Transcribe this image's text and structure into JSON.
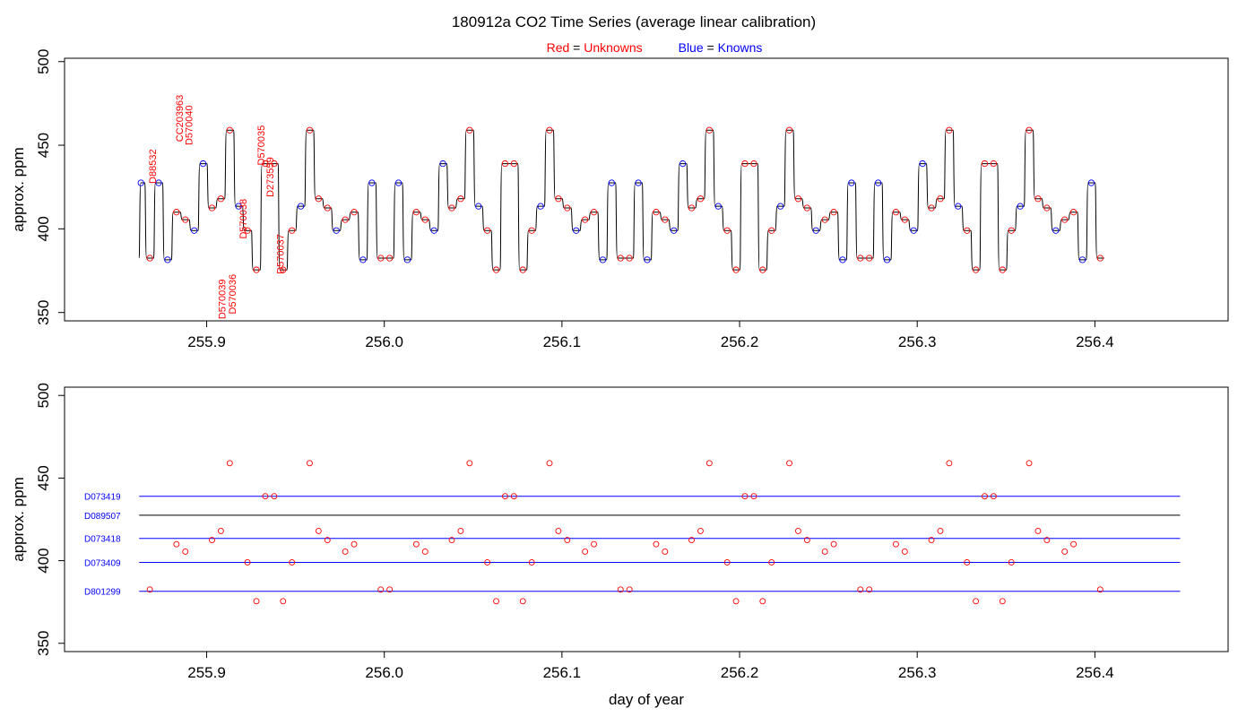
{
  "header": {
    "title": "180912a   CO2 Time Series (average linear calibration)",
    "legend": {
      "unknowns_name": "Red",
      "unknowns_eq": " = ",
      "unknowns_label": "Unknowns",
      "knowns_name": "Blue",
      "knowns_eq": " = ",
      "knowns_label": "Knowns"
    }
  },
  "colors": {
    "unknown": "#ff0000",
    "known": "#0000ff",
    "trace": "#000000",
    "axis": "#000000"
  },
  "chart_data": [
    {
      "type": "line",
      "title": "",
      "xlabel": "",
      "ylabel": "approx. ppm",
      "xlim": [
        255.82,
        256.475
      ],
      "ylim": [
        345,
        502
      ],
      "x_ticks": [
        255.9,
        256.0,
        256.1,
        256.2,
        256.3,
        256.4
      ],
      "x_tick_labels": [
        "255.9",
        "256.0",
        "256.1",
        "256.2",
        "256.3",
        "256.4"
      ],
      "y_ticks": [
        350,
        400,
        450,
        500
      ],
      "y_tick_labels": [
        "350",
        "400",
        "450",
        "500"
      ],
      "trace_start": {
        "x": 255.862,
        "y": 382.5
      },
      "step_interval_days": 0.005,
      "sample_x_start": 255.863,
      "sample_values": [
        427.5,
        382.5,
        427.5,
        381.5,
        410,
        405.5,
        399,
        439,
        412.5,
        418,
        459,
        413.5,
        399,
        375.5,
        439,
        439,
        375.5,
        399,
        413.5,
        459,
        418,
        412.5,
        399,
        405.5,
        410,
        381.5,
        427.5,
        382.5,
        382.5,
        427.5,
        381.5,
        410,
        405.5,
        399,
        439,
        412.5,
        418,
        459,
        413.5,
        399,
        375.5,
        439,
        439,
        375.5,
        399,
        413.5,
        459,
        418,
        412.5,
        399,
        405.5,
        410,
        381.5,
        427.5,
        382.5,
        382.5,
        427.5,
        381.5,
        410,
        405.5,
        399,
        439,
        412.5,
        418,
        459,
        413.5,
        399,
        375.5,
        439,
        439,
        375.5,
        399,
        413.5,
        459,
        418,
        412.5,
        399,
        405.5,
        410,
        381.5,
        427.5,
        382.5,
        382.5,
        427.5,
        381.5,
        410,
        405.5,
        399,
        439,
        412.5,
        418,
        459,
        413.5,
        399,
        375.5,
        439,
        439,
        375.5,
        399,
        413.5,
        459,
        418,
        412.5,
        399,
        405.5,
        410,
        381.5,
        427.5,
        382.5
      ],
      "sample_kinds": [
        "K",
        "U",
        "K",
        "K",
        "U",
        "U",
        "K",
        "K",
        "U",
        "U",
        "U",
        "K",
        "U",
        "U",
        "U",
        "U",
        "U",
        "U",
        "K",
        "U",
        "U",
        "U",
        "K",
        "U",
        "U",
        "K",
        "K",
        "U",
        "U",
        "K",
        "K",
        "U",
        "U",
        "K",
        "K",
        "U",
        "U",
        "U",
        "K",
        "U",
        "U",
        "U",
        "U",
        "U",
        "U",
        "K",
        "U",
        "U",
        "U",
        "K",
        "U",
        "U",
        "K",
        "K",
        "U",
        "U",
        "K",
        "K",
        "U",
        "U",
        "K",
        "K",
        "U",
        "U",
        "U",
        "K",
        "U",
        "U",
        "U",
        "U",
        "U",
        "U",
        "K",
        "U",
        "U",
        "U",
        "K",
        "U",
        "U",
        "K",
        "K",
        "U",
        "U",
        "K",
        "K",
        "U",
        "U",
        "K",
        "K",
        "U",
        "U",
        "U",
        "K",
        "U",
        "U",
        "U",
        "U",
        "U",
        "U",
        "K",
        "U",
        "U",
        "U",
        "K",
        "U",
        "U",
        "K",
        "K",
        "U"
      ],
      "annotations": [
        {
          "text": "D88532",
          "x": 255.8715,
          "y": 427,
          "color": "unknown"
        },
        {
          "text": "CC203963",
          "x": 255.8865,
          "y": 452,
          "color": "unknown"
        },
        {
          "text": "D570040",
          "x": 255.892,
          "y": 450,
          "color": "unknown"
        },
        {
          "text": "D570039",
          "x": 255.9105,
          "y": 346,
          "color": "unknown"
        },
        {
          "text": "D570036",
          "x": 255.9165,
          "y": 349,
          "color": "unknown"
        },
        {
          "text": "D570038",
          "x": 255.9225,
          "y": 394,
          "color": "unknown"
        },
        {
          "text": "D570035",
          "x": 255.9325,
          "y": 438,
          "color": "unknown"
        },
        {
          "text": "D273559",
          "x": 255.9375,
          "y": 419,
          "color": "unknown"
        },
        {
          "text": "D570037",
          "x": 255.9435,
          "y": 373,
          "color": "unknown"
        }
      ]
    },
    {
      "type": "scatter",
      "title": "",
      "xlabel": "day of year",
      "ylabel": "approx. ppm",
      "xlim": [
        255.82,
        256.475
      ],
      "ylim": [
        345,
        505
      ],
      "x_ticks": [
        255.9,
        256.0,
        256.1,
        256.2,
        256.3,
        256.4
      ],
      "x_tick_labels": [
        "255.9",
        "256.0",
        "256.1",
        "256.2",
        "256.3",
        "256.4"
      ],
      "y_ticks": [
        350,
        400,
        450,
        500
      ],
      "y_tick_labels": [
        "350",
        "400",
        "450",
        "500"
      ],
      "reference_lines": [
        {
          "label": "D073419",
          "y": 439,
          "x_start": 255.862,
          "x_end": 256.448,
          "color": "known"
        },
        {
          "label": "D089507",
          "y": 427.5,
          "x_start": 255.862,
          "x_end": 256.448,
          "color": "trace"
        },
        {
          "label": "D073418",
          "y": 413.5,
          "x_start": 255.862,
          "x_end": 256.448,
          "color": "known"
        },
        {
          "label": "D073409",
          "y": 399,
          "x_start": 255.862,
          "x_end": 256.448,
          "color": "known"
        },
        {
          "label": "D801299",
          "y": 381.5,
          "x_start": 255.862,
          "x_end": 256.448,
          "color": "known"
        }
      ],
      "points_from_unknown_samples": true
    }
  ]
}
